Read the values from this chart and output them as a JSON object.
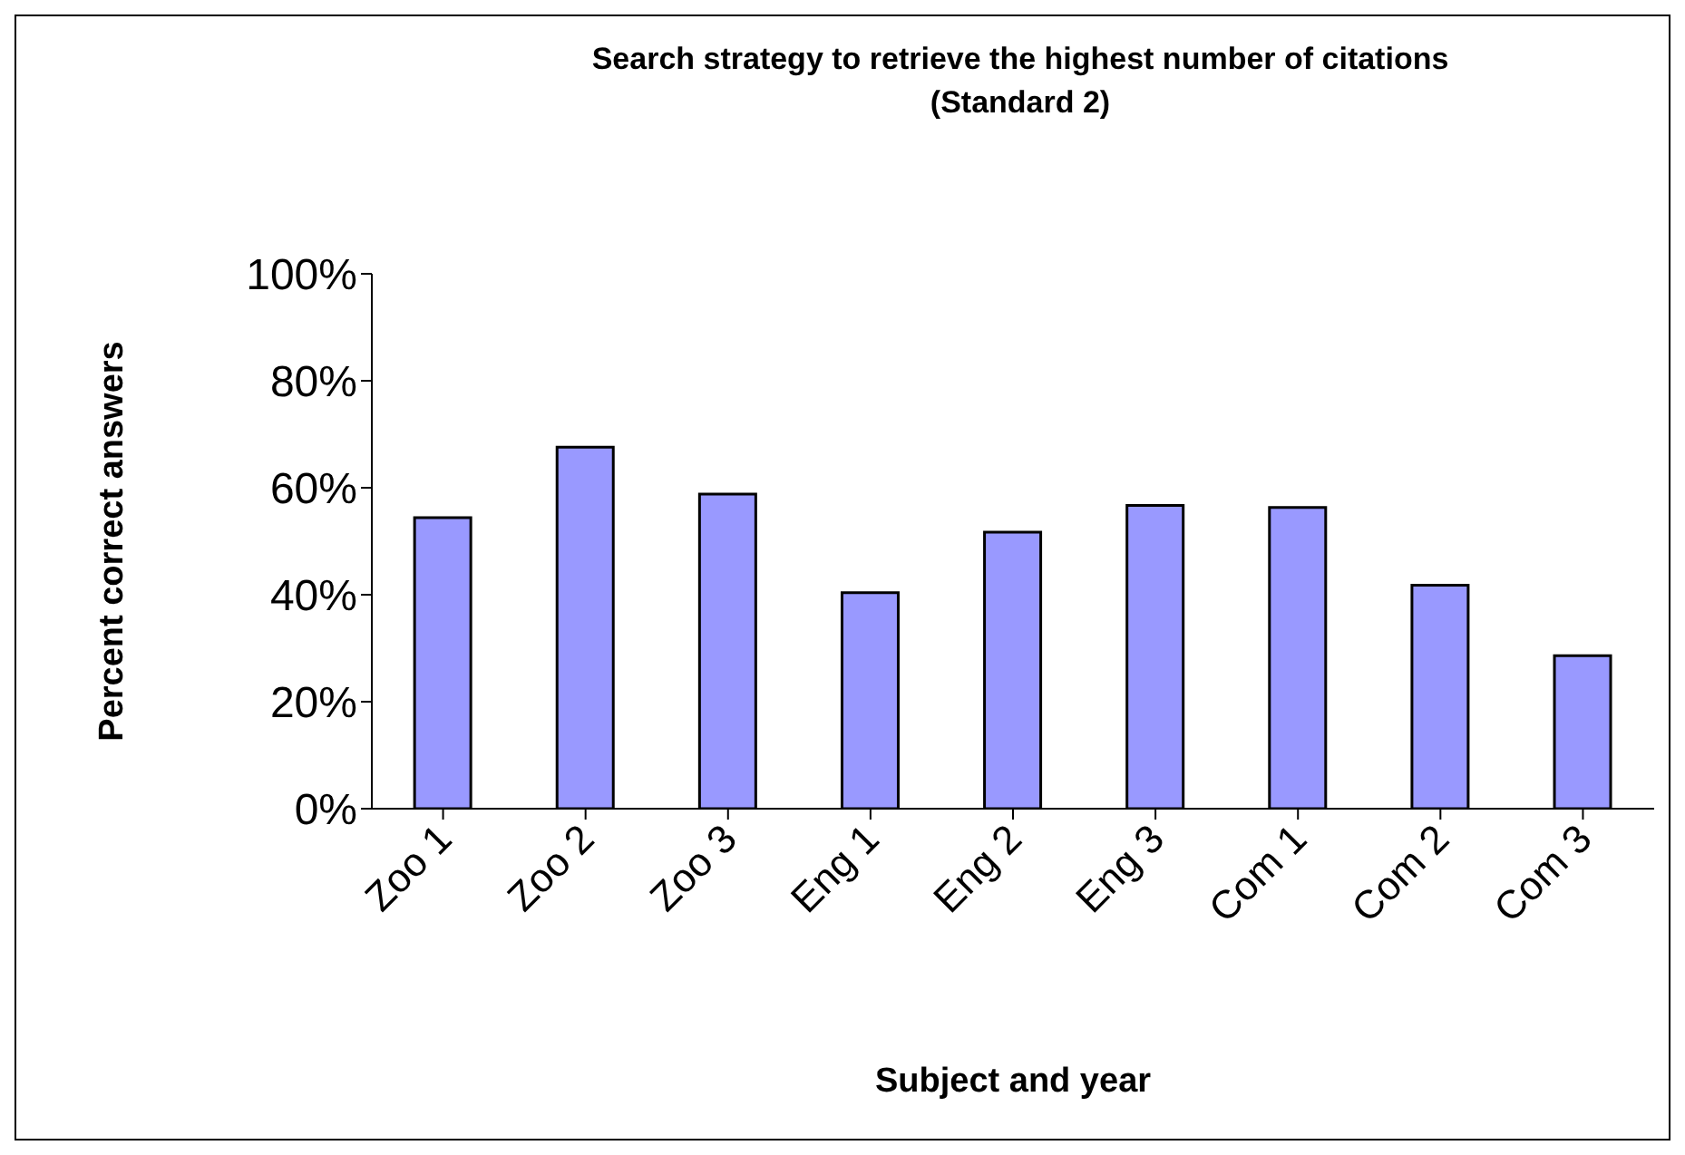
{
  "chart_data": {
    "type": "bar",
    "title": "Search strategy to retrieve the highest number of citations\n(Standard 2)",
    "xlabel": "Subject and year",
    "ylabel": "Percent correct answers",
    "categories": [
      "Zoo 1",
      "Zoo 2",
      "Zoo 3",
      "Eng 1",
      "Eng 2",
      "Eng 3",
      "Com 1",
      "Com 2",
      "Com 3"
    ],
    "values": [
      54.4,
      67.6,
      58.8,
      40.4,
      51.7,
      56.7,
      56.3,
      41.8,
      28.6
    ],
    "color": "#9999ff",
    "ylim": [
      0,
      100
    ],
    "yticks": [
      {
        "value": 0,
        "label": "0%"
      },
      {
        "value": 20,
        "label": "20%"
      },
      {
        "value": 40,
        "label": "40%"
      },
      {
        "value": 60,
        "label": "60%"
      },
      {
        "value": 80,
        "label": "80%"
      },
      {
        "value": 100,
        "label": "100%"
      }
    ],
    "grid": false,
    "legend": false
  }
}
